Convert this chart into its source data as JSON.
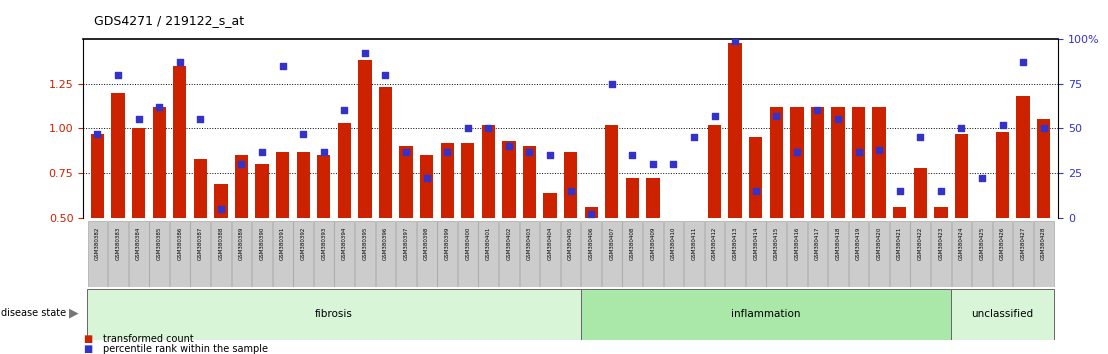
{
  "title": "GDS4271 / 219122_s_at",
  "samples": [
    "GSM380382",
    "GSM380383",
    "GSM380384",
    "GSM380385",
    "GSM380386",
    "GSM380387",
    "GSM380388",
    "GSM380389",
    "GSM380390",
    "GSM380391",
    "GSM380392",
    "GSM380393",
    "GSM380394",
    "GSM380395",
    "GSM380396",
    "GSM380397",
    "GSM380398",
    "GSM380399",
    "GSM380400",
    "GSM380401",
    "GSM380402",
    "GSM380403",
    "GSM380404",
    "GSM380405",
    "GSM380406",
    "GSM380407",
    "GSM380408",
    "GSM380409",
    "GSM380410",
    "GSM380411",
    "GSM380412",
    "GSM380413",
    "GSM380414",
    "GSM380415",
    "GSM380416",
    "GSM380417",
    "GSM380418",
    "GSM380419",
    "GSM380420",
    "GSM380421",
    "GSM380422",
    "GSM380423",
    "GSM380424",
    "GSM380425",
    "GSM380426",
    "GSM380427",
    "GSM380428"
  ],
  "bar_values": [
    0.97,
    1.2,
    1.0,
    1.12,
    1.35,
    0.83,
    0.69,
    0.85,
    0.8,
    0.87,
    0.87,
    0.85,
    1.03,
    1.38,
    1.23,
    0.9,
    0.85,
    0.92,
    0.92,
    1.02,
    0.93,
    0.9,
    0.64,
    0.87,
    0.56,
    1.02,
    0.72,
    0.72,
    0.46,
    0.46,
    1.02,
    1.48,
    0.95,
    1.12,
    1.12,
    1.12,
    1.12,
    1.12,
    1.12,
    0.56,
    0.78,
    0.56,
    0.97,
    0.5,
    0.98,
    1.18,
    1.05
  ],
  "percentile_values": [
    47,
    80,
    55,
    62,
    87,
    55,
    5,
    30,
    37,
    85,
    47,
    37,
    60,
    92,
    80,
    37,
    22,
    37,
    50,
    50,
    40,
    37,
    35,
    15,
    2,
    75,
    35,
    30,
    30,
    45,
    57,
    99,
    15,
    57,
    37,
    60,
    55,
    37,
    38,
    15,
    45,
    15,
    50,
    22,
    52,
    87,
    50
  ],
  "groups": [
    {
      "label": "fibrosis",
      "start": 0,
      "end": 24,
      "color": "#d8f5d8"
    },
    {
      "label": "inflammation",
      "start": 24,
      "end": 42,
      "color": "#aae8aa"
    },
    {
      "label": "unclassified",
      "start": 42,
      "end": 47,
      "color": "#d8f5d8"
    }
  ],
  "bar_color": "#cc2200",
  "dot_color": "#3333cc",
  "ylim_left": [
    0.5,
    1.5
  ],
  "ylim_right": [
    0,
    100
  ],
  "yticks_left": [
    0.5,
    0.75,
    1.0,
    1.25
  ],
  "yticks_right": [
    0,
    25,
    50,
    75,
    100
  ],
  "background_color": "#ffffff",
  "tick_bg_color": "#cccccc"
}
